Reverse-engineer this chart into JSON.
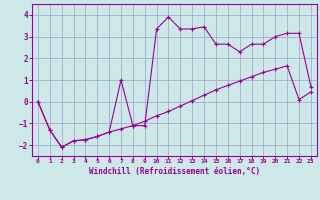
{
  "xlabel": "Windchill (Refroidissement éolien,°C)",
  "background_color": "#cce8e8",
  "grid_color": "#aaaacc",
  "line_color": "#990099",
  "xlim": [
    -0.5,
    23.5
  ],
  "ylim": [
    -2.5,
    4.5
  ],
  "xticks": [
    0,
    1,
    2,
    3,
    4,
    5,
    6,
    7,
    8,
    9,
    10,
    11,
    12,
    13,
    14,
    15,
    16,
    17,
    18,
    19,
    20,
    21,
    22,
    23
  ],
  "yticks": [
    -2,
    -1,
    0,
    1,
    2,
    3,
    4
  ],
  "series1_x": [
    0,
    1,
    2,
    3,
    4,
    5,
    6,
    7,
    8,
    9,
    10,
    11,
    12,
    13,
    14,
    15,
    16,
    17,
    18,
    19,
    20,
    21,
    22,
    23
  ],
  "series1_y": [
    0.0,
    -1.3,
    -2.1,
    -1.8,
    -1.75,
    -1.6,
    -1.4,
    -1.25,
    -1.1,
    -0.9,
    -0.65,
    -0.45,
    -0.2,
    0.05,
    0.3,
    0.55,
    0.75,
    0.95,
    1.15,
    1.35,
    1.5,
    1.65,
    0.1,
    0.45
  ],
  "series2_x": [
    0,
    1,
    2,
    3,
    4,
    5,
    6,
    7,
    8,
    9,
    10,
    11,
    12,
    13,
    14,
    15,
    16,
    17,
    18,
    19,
    20,
    21,
    22,
    23
  ],
  "series2_y": [
    0.0,
    -1.3,
    -2.1,
    -1.8,
    -1.75,
    -1.6,
    -1.4,
    1.0,
    -1.1,
    -1.1,
    3.35,
    3.9,
    3.35,
    3.35,
    3.45,
    2.65,
    2.65,
    2.3,
    2.65,
    2.65,
    3.0,
    3.15,
    3.15,
    0.7
  ]
}
